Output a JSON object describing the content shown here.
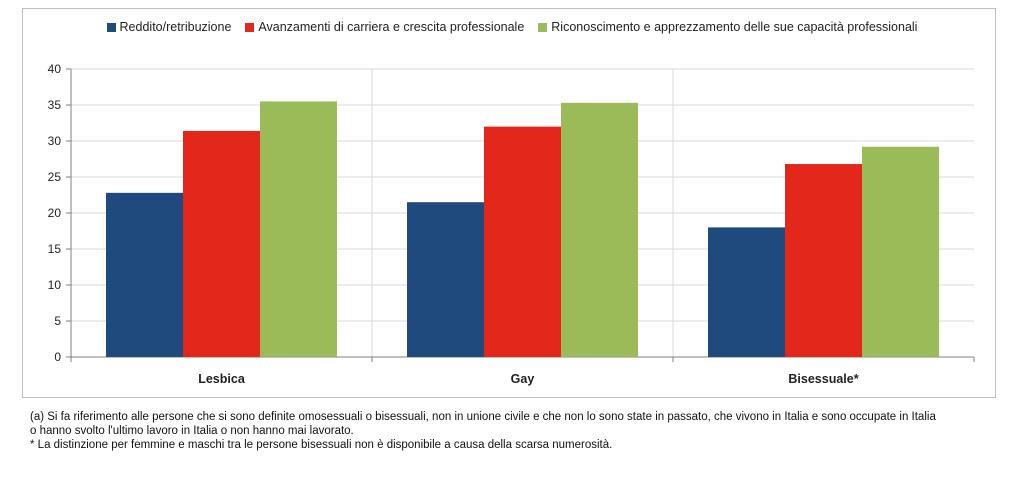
{
  "chart_data": {
    "type": "bar",
    "categories": [
      "Lesbica",
      "Gay",
      "Bisessuale*"
    ],
    "series": [
      {
        "name": "Reddito/retribuzione",
        "color": "#1f4a7d",
        "values": [
          22.8,
          21.5,
          18.0
        ]
      },
      {
        "name": "Avanzamenti di carriera e crescita professionale",
        "color": "#e3271b",
        "values": [
          31.4,
          32.0,
          26.8
        ]
      },
      {
        "name": "Riconoscimento e apprezzamento delle sue capacità professionali",
        "color": "#9bbb59",
        "values": [
          35.5,
          35.3,
          29.2
        ]
      }
    ],
    "ylim": [
      0,
      40
    ],
    "yticks": [
      0,
      5,
      10,
      15,
      20,
      25,
      30,
      35,
      40
    ],
    "grid": true,
    "legend_position": "top-center"
  },
  "notes": {
    "line_a": "(a) Si fa riferimento alle persone che si sono definite omosessuali o bisessuali, non in unione civile e che non lo sono state in passato, che vivono in Italia e sono occupate in Italia",
    "line_b": "o hanno svolto l'ultimo lavoro in Italia o non hanno mai lavorato.",
    "line_c": "* La distinzione per femmine e maschi tra le persone bisessuali non è disponibile a causa della scarsa numerosità."
  }
}
